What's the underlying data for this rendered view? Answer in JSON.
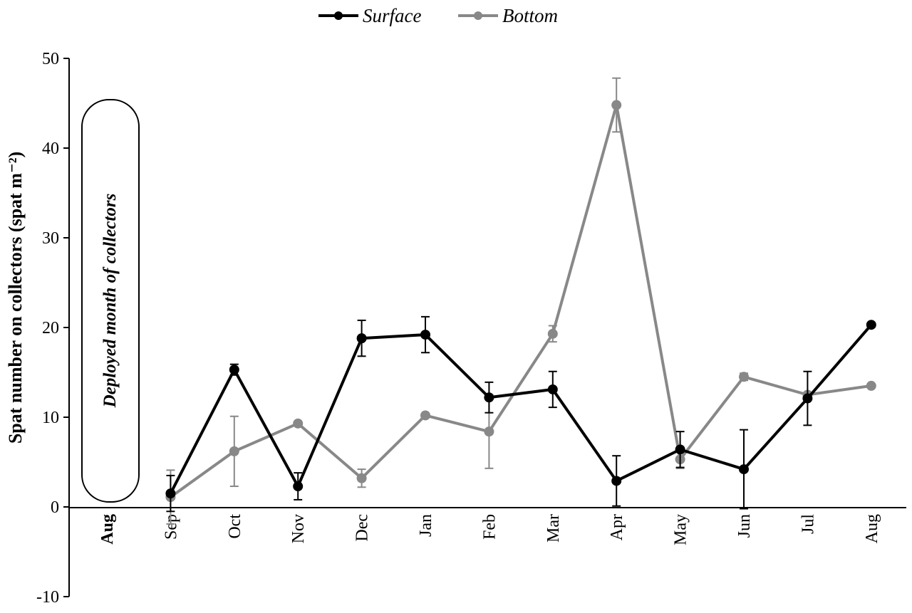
{
  "chart_data": {
    "type": "line",
    "title": "",
    "xlabel": "",
    "ylabel": "Spat number on collectors (spat m⁻²)",
    "ylim": [
      -10,
      50
    ],
    "yticks": [
      -10,
      0,
      10,
      20,
      30,
      40,
      50
    ],
    "categories": [
      "Aug",
      "Sep",
      "Oct",
      "Nov",
      "Dec",
      "Jan",
      "Feb",
      "Mar",
      "Apr",
      "May",
      "Jun",
      "Jul",
      "Aug"
    ],
    "first_category_bold": true,
    "grid": false,
    "legend_position": "top-center",
    "annotation": "Deployed month of collectors",
    "series": [
      {
        "name": "Surface",
        "color": "#000000",
        "values": [
          null,
          1.5,
          15.3,
          2.3,
          18.8,
          19.2,
          12.2,
          13.1,
          2.9,
          6.4,
          4.2,
          12.1,
          20.3
        ],
        "errors": [
          null,
          2.0,
          0.6,
          1.5,
          2.0,
          2.0,
          1.7,
          2.0,
          2.8,
          2.0,
          4.4,
          3.0,
          null
        ]
      },
      {
        "name": "Bottom",
        "color": "#888888",
        "values": [
          null,
          1.1,
          6.2,
          9.3,
          3.2,
          10.2,
          8.4,
          19.3,
          44.8,
          5.3,
          14.5,
          12.5,
          13.5
        ],
        "errors": [
          null,
          3.0,
          3.9,
          null,
          1.0,
          null,
          4.1,
          0.9,
          3.0,
          1.0,
          0.4,
          null,
          null
        ]
      }
    ]
  }
}
